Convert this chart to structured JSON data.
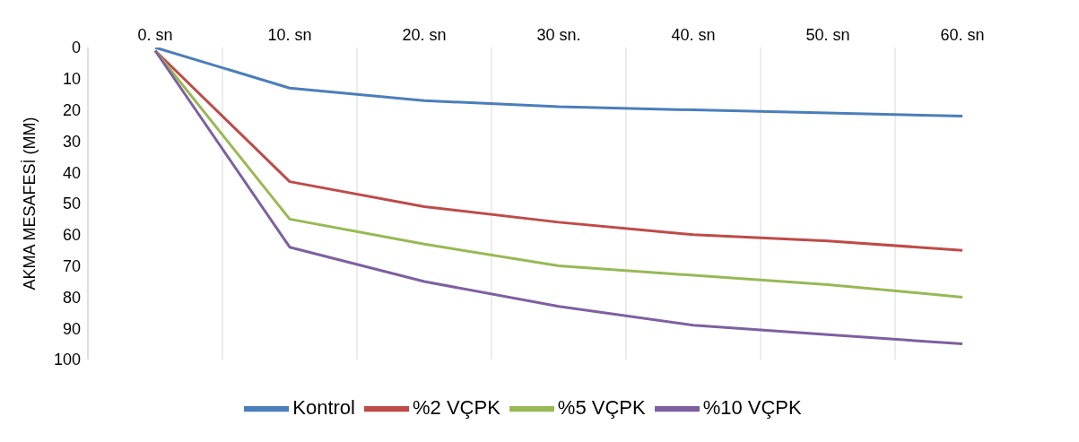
{
  "chart_data": {
    "type": "line",
    "ylabel": "AKMA MESAFESİ (MM)",
    "categories": [
      "0. sn",
      "10. sn",
      "20. sn",
      "30 sn.",
      "40. sn",
      "50. sn",
      "60. sn"
    ],
    "series": [
      {
        "name": "Kontrol",
        "color": "#4a7ebb",
        "values": [
          0,
          13,
          17,
          19,
          20,
          21,
          22
        ]
      },
      {
        "name": "%2 VÇPK",
        "color": "#be4b48",
        "values": [
          1,
          43,
          51,
          56,
          60,
          62,
          65
        ]
      },
      {
        "name": "%5 VÇPK",
        "color": "#98b954",
        "values": [
          1,
          55,
          63,
          70,
          73,
          76,
          80
        ]
      },
      {
        "name": "%10 VÇPK",
        "color": "#7d60a0",
        "values": [
          1,
          64,
          75,
          83,
          89,
          92,
          95
        ]
      }
    ],
    "ylim": [
      100,
      0
    ],
    "yticks": [
      0,
      10,
      20,
      30,
      40,
      50,
      60,
      70,
      80,
      90,
      100
    ],
    "grid": "x",
    "legend": "bottom",
    "marker": "none",
    "line_style": "solid"
  }
}
